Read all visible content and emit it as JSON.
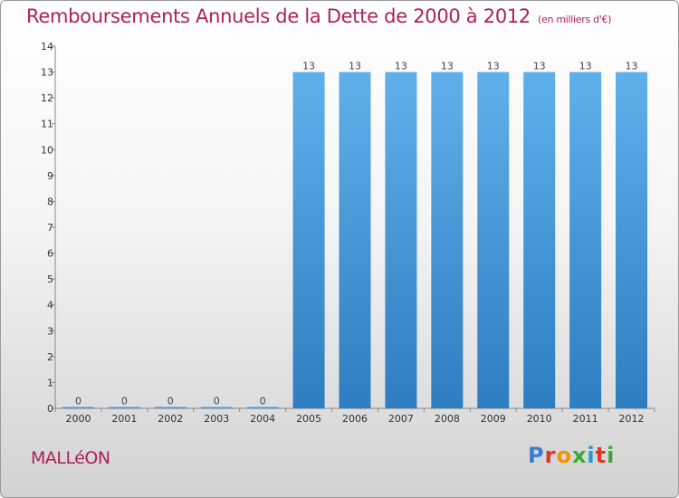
{
  "header": {
    "title": "Remboursements Annuels de la Dette de 2000 à 2012",
    "unit": "(en milliers d'€)"
  },
  "footer": {
    "commune": "MALLéON",
    "brand_letters": [
      "P",
      "r",
      "o",
      "x",
      "i",
      "t",
      "i"
    ],
    "brand_colors": [
      "#3a7bd5",
      "#e6332a",
      "#f29400",
      "#3aaa35",
      "#1d9bd7",
      "#e6332a",
      "#3aaa35"
    ]
  },
  "colors": {
    "title": "#b01e5a",
    "bar_top": "#5fb0ea",
    "bar_bottom": "#2e7dc1",
    "axis": "#888888"
  },
  "chart_data": {
    "type": "bar",
    "title": "Remboursements Annuels de la Dette de 2000 à 2012",
    "xlabel": "",
    "ylabel": "",
    "categories": [
      "2000",
      "2001",
      "2002",
      "2003",
      "2004",
      "2005",
      "2006",
      "2007",
      "2008",
      "2009",
      "2010",
      "2011",
      "2012"
    ],
    "values": [
      0,
      0,
      0,
      0,
      0,
      13,
      13,
      13,
      13,
      13,
      13,
      13,
      13
    ],
    "ylim": [
      0,
      14
    ],
    "yticks": [
      0,
      1,
      2,
      3,
      4,
      5,
      6,
      7,
      8,
      9,
      10,
      11,
      12,
      13,
      14
    ],
    "grid": false,
    "legend": "none"
  }
}
